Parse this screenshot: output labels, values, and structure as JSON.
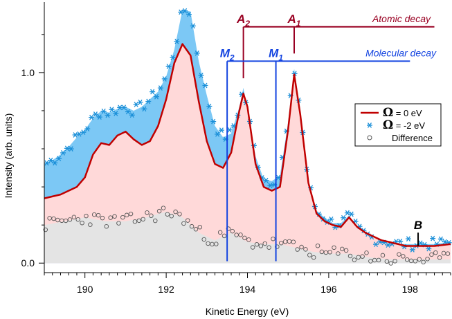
{
  "chart_data": {
    "type": "line",
    "xlabel": "Kinetic Energy (eV)",
    "ylabel": "Intensity (arb. units)",
    "xlim": [
      189.0,
      199.0
    ],
    "ylim": [
      -0.05,
      1.37
    ],
    "x_ticks": [
      190,
      192,
      194,
      196,
      198
    ],
    "x_tick_labels": [
      "190",
      "192",
      "194",
      "196",
      "198"
    ],
    "y_ticks": [
      0.0,
      1.0
    ],
    "y_tick_labels": [
      "0.0",
      "1.0"
    ],
    "grid": false,
    "legend": {
      "placement": "right",
      "entries": [
        {
          "symbol": "Ω",
          "label": " = 0 eV",
          "color": "#c00000"
        },
        {
          "symbol": "Ω",
          "label": " = -2 eV",
          "color": "#1a8fd8"
        },
        {
          "symbol": "",
          "label": "Difference",
          "color": "#555555"
        }
      ]
    },
    "colors": {
      "omega0_line": "#c00000",
      "omega0_fill": "#ffd9d9",
      "omega2_points": "#1a8fd8",
      "omega2_fill": "#7cc8f5",
      "difference_points": "#555555",
      "difference_fill": "#e4e4e4",
      "atomic": "#990022",
      "molecular": "#1444e0"
    },
    "series": [
      {
        "name": "Ω = 0 eV",
        "x": [
          189.0,
          189.2,
          189.4,
          189.6,
          189.8,
          190.0,
          190.2,
          190.4,
          190.6,
          190.8,
          191.0,
          191.2,
          191.4,
          191.6,
          191.8,
          192.0,
          192.2,
          192.4,
          192.6,
          192.8,
          193.0,
          193.2,
          193.4,
          193.6,
          193.8,
          193.9,
          194.0,
          194.2,
          194.4,
          194.6,
          194.8,
          195.0,
          195.15,
          195.3,
          195.5,
          195.7,
          195.9,
          196.1,
          196.3,
          196.5,
          196.7,
          196.9,
          197.1,
          197.3,
          197.5,
          197.7,
          197.9,
          198.1,
          198.3,
          198.6,
          199.0
        ],
        "values": [
          0.34,
          0.35,
          0.36,
          0.38,
          0.4,
          0.45,
          0.57,
          0.63,
          0.62,
          0.67,
          0.69,
          0.65,
          0.62,
          0.64,
          0.72,
          0.86,
          1.05,
          1.15,
          1.09,
          0.85,
          0.64,
          0.52,
          0.5,
          0.58,
          0.8,
          0.89,
          0.82,
          0.52,
          0.4,
          0.38,
          0.4,
          0.7,
          0.99,
          0.78,
          0.42,
          0.26,
          0.22,
          0.2,
          0.19,
          0.24,
          0.19,
          0.16,
          0.14,
          0.12,
          0.11,
          0.1,
          0.09,
          0.09,
          0.09,
          0.09,
          0.1
        ]
      },
      {
        "name": "Ω = -2 eV",
        "x": [
          189.0,
          189.2,
          189.4,
          189.6,
          189.8,
          190.0,
          190.2,
          190.4,
          190.6,
          190.8,
          191.0,
          191.2,
          191.4,
          191.6,
          191.8,
          192.0,
          192.2,
          192.4,
          192.6,
          192.8,
          193.0,
          193.2,
          193.4,
          193.6,
          193.8,
          193.9,
          194.0,
          194.2,
          194.4,
          194.6,
          194.8,
          195.0,
          195.15,
          195.3,
          195.5,
          195.7,
          195.9,
          196.1,
          196.3,
          196.5,
          196.7,
          196.9,
          197.1,
          197.3,
          197.5,
          197.7,
          197.9,
          198.1,
          198.3,
          198.6,
          199.0
        ],
        "values": [
          0.52,
          0.54,
          0.57,
          0.61,
          0.66,
          0.7,
          0.76,
          0.8,
          0.79,
          0.81,
          0.82,
          0.8,
          0.82,
          0.86,
          0.9,
          0.98,
          1.12,
          1.33,
          1.32,
          1.06,
          0.88,
          0.72,
          0.66,
          0.68,
          0.82,
          0.92,
          0.8,
          0.56,
          0.44,
          0.43,
          0.46,
          0.74,
          1.02,
          0.8,
          0.42,
          0.27,
          0.24,
          0.21,
          0.21,
          0.25,
          0.18,
          0.15,
          0.13,
          0.12,
          0.11,
          0.1,
          0.1,
          0.1,
          0.1,
          0.1,
          0.11
        ]
      },
      {
        "name": "Difference",
        "x": [
          189.0,
          189.5,
          190.0,
          190.5,
          191.0,
          191.5,
          192.0,
          192.4,
          192.8,
          193.2,
          193.6,
          194.0,
          194.4,
          194.8,
          195.2,
          195.6,
          196.0,
          196.5,
          197.0,
          197.5,
          198.0,
          198.5,
          199.0
        ],
        "values": [
          0.2,
          0.22,
          0.24,
          0.22,
          0.22,
          0.24,
          0.27,
          0.24,
          0.16,
          0.12,
          0.16,
          0.11,
          0.1,
          0.1,
          0.08,
          0.06,
          0.05,
          0.05,
          0.03,
          0.02,
          0.02,
          0.02,
          0.02
        ]
      }
    ],
    "annotations": {
      "atomic_label": "Atomic decay",
      "molecular_label": "Molecular decay",
      "A2": {
        "letter": "A",
        "sub": "2",
        "x": 193.9,
        "y_top": 1.24,
        "y_bottom": 0.97
      },
      "A1": {
        "letter": "A",
        "sub": "1",
        "x": 195.15,
        "y_top": 1.24,
        "y_bottom": 1.1
      },
      "atomic_bar": {
        "x_start": 193.9,
        "x_end": 198.6,
        "y": 1.24
      },
      "M2": {
        "letter": "M",
        "sub": "2",
        "x": 193.5,
        "y_top": 1.06,
        "y_bottom": 0.01
      },
      "M1": {
        "letter": "M",
        "sub": "1",
        "x": 194.7,
        "y_top": 1.06,
        "y_bottom": 0.01
      },
      "molecular_bar": {
        "x_start": 193.5,
        "x_end": 198.0,
        "y": 1.06
      },
      "B": {
        "label": "B",
        "x": 198.2,
        "y_top": 0.16,
        "y_bottom": 0.09
      }
    }
  }
}
